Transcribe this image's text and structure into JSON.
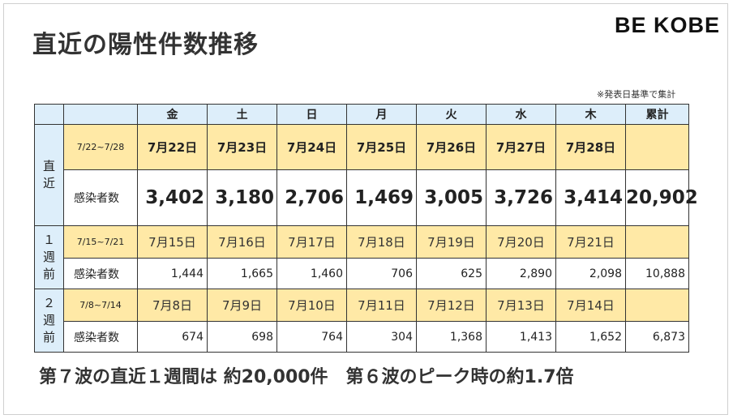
{
  "title": "直近の陽性件数推移",
  "logo": "BE KOBE",
  "note": "※発表日基準で集計",
  "header": {
    "days": [
      "金",
      "土",
      "日",
      "月",
      "火",
      "水",
      "木"
    ],
    "total": "累計"
  },
  "sections": [
    {
      "label": "直\n近",
      "range": "7/22~7/28",
      "dates": [
        "7月22日",
        "7月23日",
        "7月24日",
        "7月25日",
        "7月26日",
        "7月27日",
        "7月28日"
      ],
      "row_label": "感染者数",
      "values": [
        "3,402",
        "3,180",
        "2,706",
        "1,469",
        "3,005",
        "3,726",
        "3,414"
      ],
      "total": "20,902"
    },
    {
      "label": "１\n週\n前",
      "range": "7/15~7/21",
      "dates": [
        "7月15日",
        "7月16日",
        "7月17日",
        "7月18日",
        "7月19日",
        "7月20日",
        "7月21日"
      ],
      "row_label": "感染者数",
      "values": [
        "1,444",
        "1,665",
        "1,460",
        "706",
        "625",
        "2,890",
        "2,098"
      ],
      "total": "10,888"
    },
    {
      "label": "２\n週\n前",
      "range": "7/8~7/14",
      "dates": [
        "7月8日",
        "7月9日",
        "7月10日",
        "7月11日",
        "7月12日",
        "7月13日",
        "7月14日"
      ],
      "row_label": "感染者数",
      "values": [
        "674",
        "698",
        "764",
        "304",
        "1,368",
        "1,413",
        "1,652"
      ],
      "total": "6,873"
    }
  ],
  "conclusion": "第７波の直近１週間は 約20,000件　第６波のピーク時の約1.7倍"
}
